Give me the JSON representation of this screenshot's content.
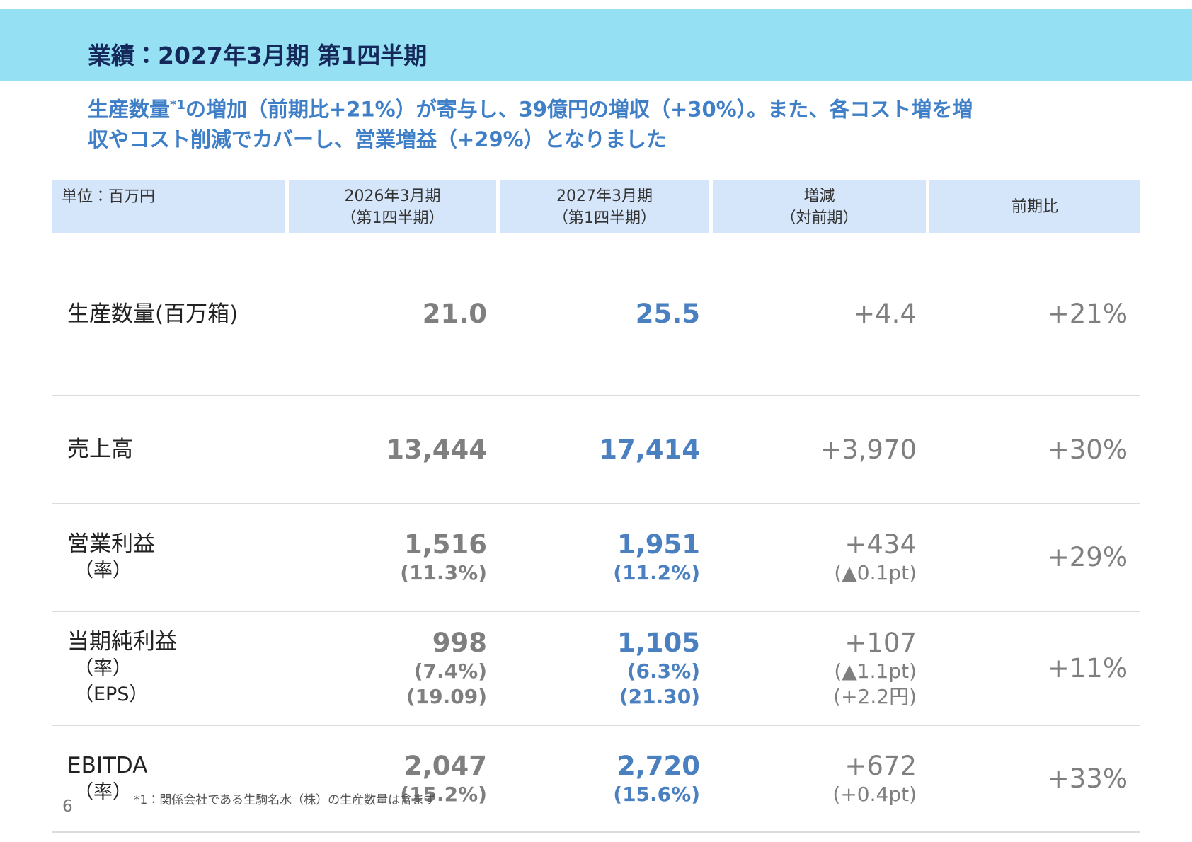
{
  "header": {
    "title": "業績：2027年3月期 第1四半期"
  },
  "lead": {
    "line1_start": "生産数量",
    "note_mark": "*1",
    "line1_rest": "の増加（前期比+21%）が寄与し、39億円の増収（+30%）。また、各コスト増を増",
    "line2": "収やコスト削減でカバーし、営業増益（+29%）となりました"
  },
  "table": {
    "header": [
      [
        "単位：百万円"
      ],
      [
        "2026年3月期",
        "（第1四半期）"
      ],
      [
        "2027年3月期",
        "（第1四半期）"
      ],
      [
        "増減",
        "（対前期）"
      ],
      [
        "前期比"
      ]
    ],
    "rows": [
      {
        "label": [
          "生産数量(百万箱)"
        ],
        "prev": [
          "21.0"
        ],
        "curr": [
          "25.5"
        ],
        "change": [
          "+4.4"
        ],
        "ratio": [
          "+21%"
        ]
      },
      {
        "label": [
          "売上高"
        ],
        "prev": [
          "13,444"
        ],
        "curr": [
          "17,414"
        ],
        "change": [
          "+3,970"
        ],
        "ratio": [
          "+30%"
        ]
      },
      {
        "label": [
          "営業利益",
          "（率）"
        ],
        "prev": [
          "1,516",
          "(11.3%)"
        ],
        "curr": [
          "1,951",
          "(11.2%)"
        ],
        "change": [
          "+434",
          "(▲0.1pt)"
        ],
        "ratio": [
          "+29%"
        ]
      },
      {
        "label": [
          "当期純利益",
          "（率）",
          "（EPS）"
        ],
        "prev": [
          "998",
          "(7.4%)",
          "(19.09)"
        ],
        "curr": [
          "1,105",
          "(6.3%)",
          "(21.30)"
        ],
        "change": [
          "+107",
          "(▲1.1pt)",
          "(+2.2円)"
        ],
        "ratio": [
          "+11%"
        ]
      },
      {
        "label": [
          "EBITDA",
          "（率）"
        ],
        "prev": [
          "2,047",
          "(15.2%)"
        ],
        "curr": [
          "2,720",
          "(15.6%)"
        ],
        "change": [
          "+672",
          "(+0.4pt)"
        ],
        "ratio": [
          "+33%"
        ]
      }
    ]
  },
  "footnote": "*1：関係会社である生駒名水（株）の生産数量は含まず",
  "page_number": "6"
}
